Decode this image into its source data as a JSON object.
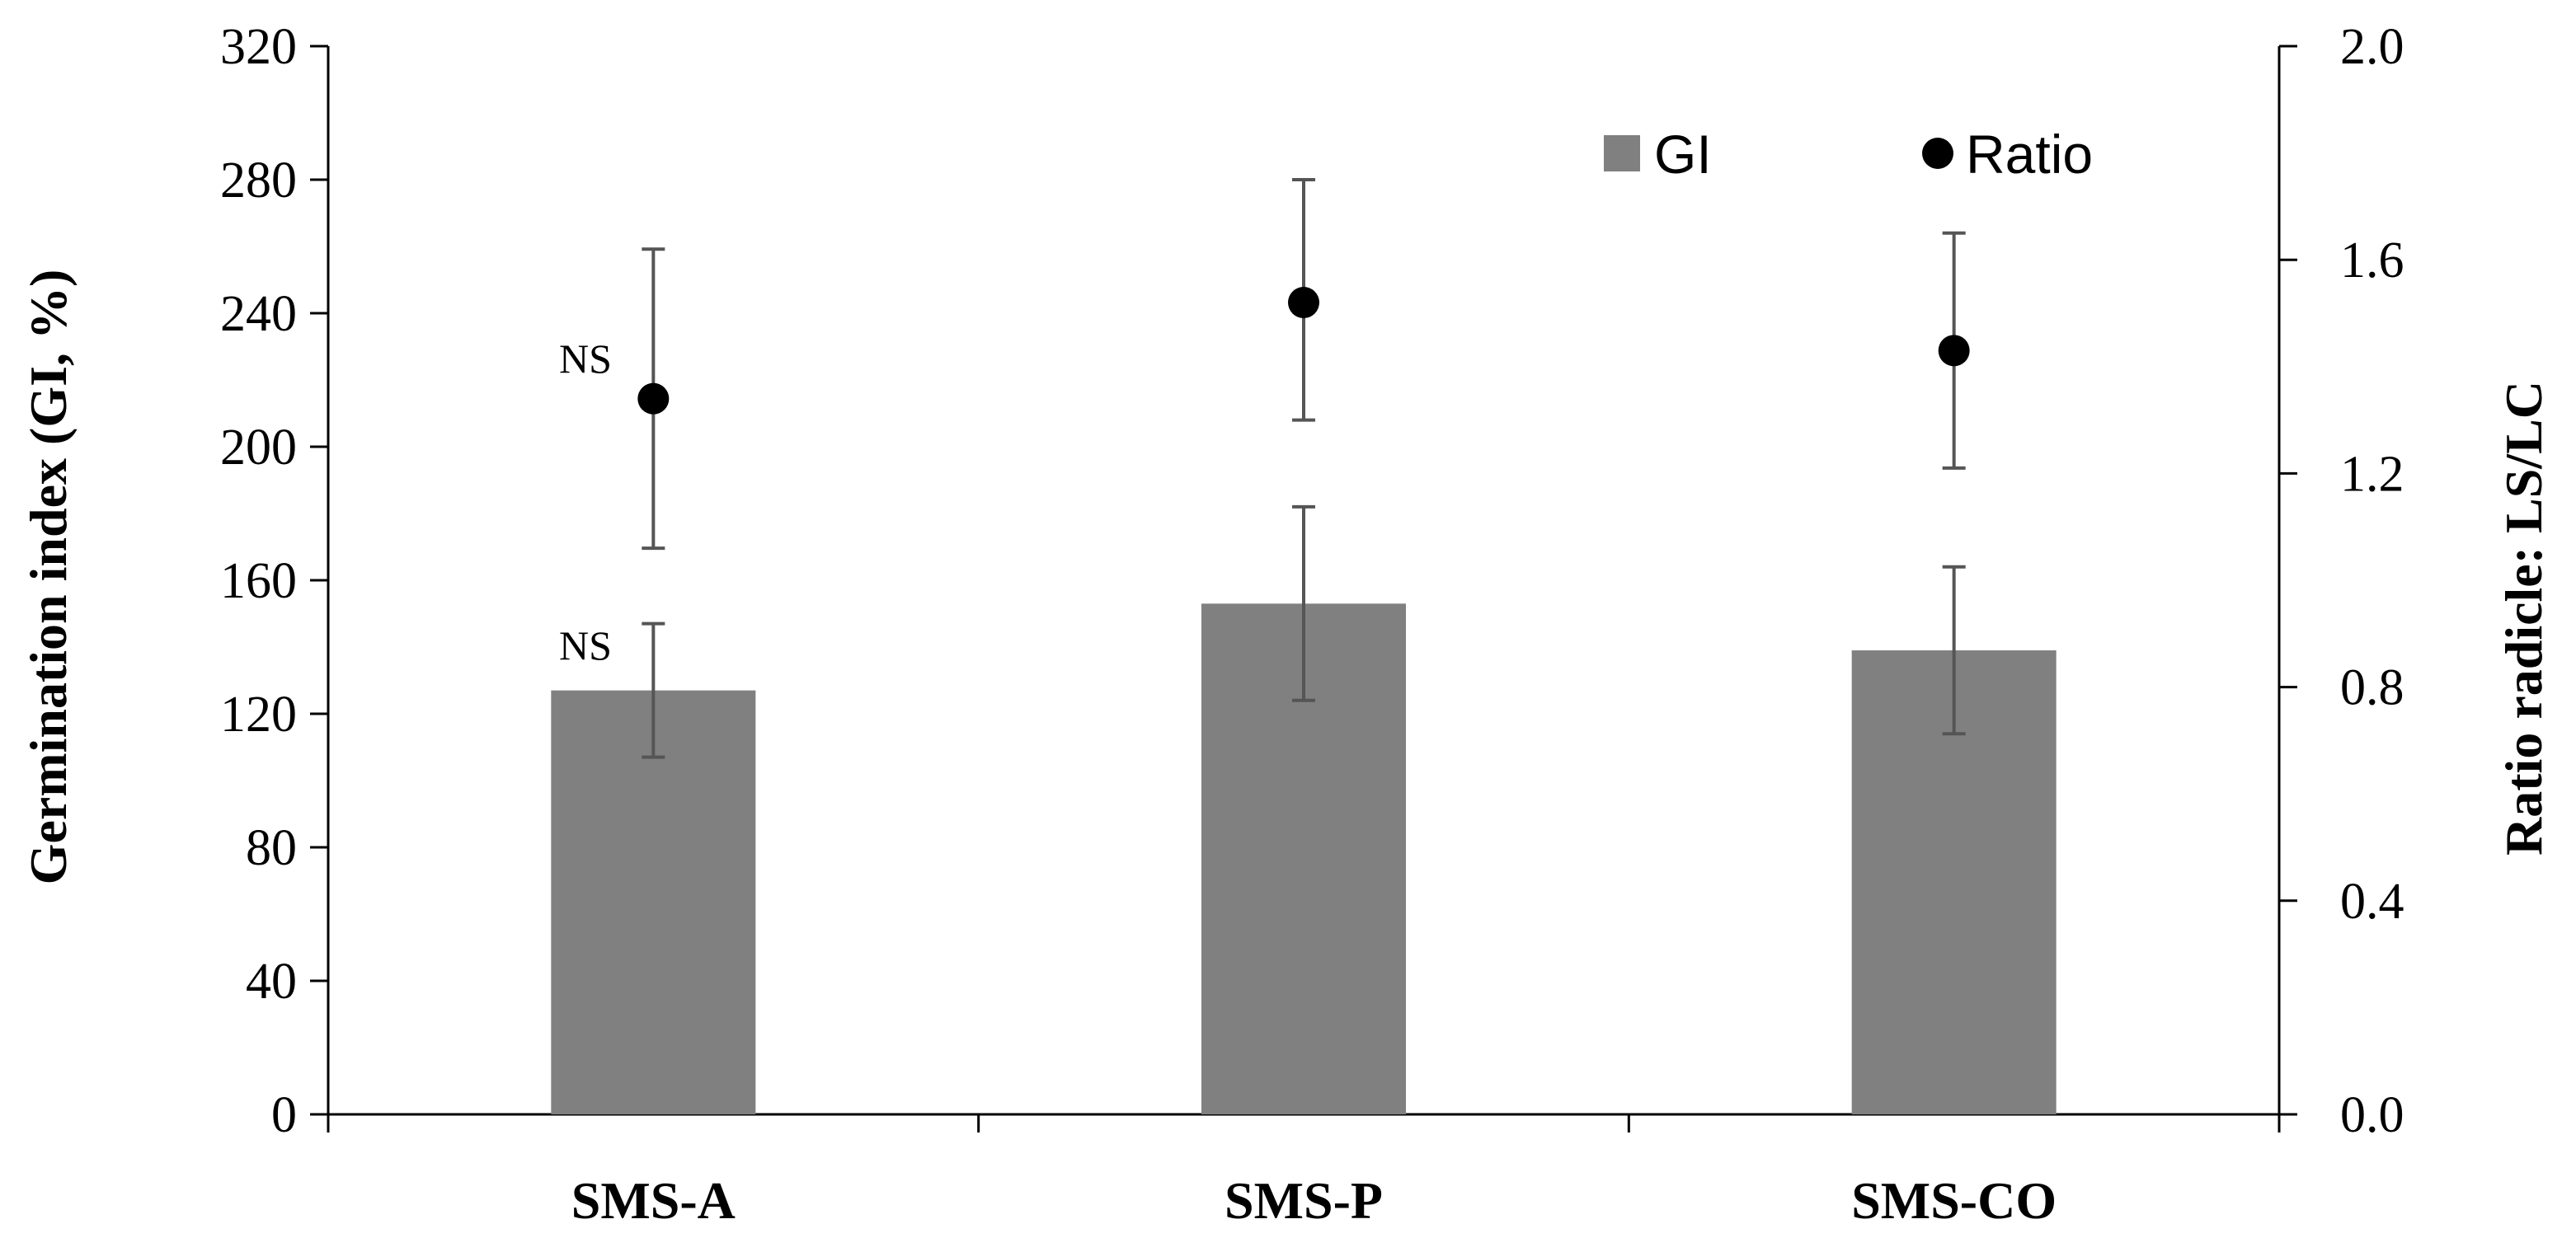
{
  "chart_data": {
    "type": "bar",
    "categories": [
      "SMS-A",
      "SMS-P",
      "SMS-CO"
    ],
    "series": [
      {
        "name": "GI",
        "kind": "bar",
        "axis": "left",
        "values": [
          127,
          153,
          139
        ],
        "error_low": [
          107,
          124,
          114
        ],
        "error_high": [
          147,
          182,
          164
        ],
        "color": "#808080"
      },
      {
        "name": "Ratio",
        "kind": "point",
        "axis": "right",
        "values": [
          1.34,
          1.52,
          1.43
        ],
        "error_low": [
          1.06,
          1.3,
          1.21
        ],
        "error_high": [
          1.62,
          1.75,
          1.65
        ],
        "color": "#000000"
      }
    ],
    "ylabel": "Germination index (GI, %)",
    "y2label": "Ratio radicle: LS/LC",
    "ylim": [
      0,
      320
    ],
    "y2lim": [
      0,
      2
    ],
    "yticks": [
      "0",
      "40",
      "80",
      "120",
      "160",
      "200",
      "240",
      "280",
      "320"
    ],
    "y2ticks": [
      "0.0",
      "0.4",
      "0.8",
      "1.2",
      "1.6",
      "2.0"
    ],
    "legend": {
      "placement": "top-right",
      "items": [
        "GI",
        "Ratio"
      ]
    },
    "annotations": [
      {
        "text": "NS",
        "category": "SMS-A",
        "series": "GI"
      },
      {
        "text": "NS",
        "category": "SMS-A",
        "series": "Ratio"
      }
    ],
    "grid": false
  },
  "colors": {
    "axis": "#000000",
    "errorbar": "#555555"
  }
}
